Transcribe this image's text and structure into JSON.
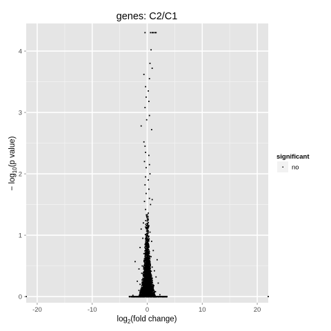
{
  "chart_data": {
    "type": "scatter",
    "title": "genes: C2/C1",
    "xlabel": {
      "prefix": "log",
      "sub": "2",
      "suffix": "(fold change)"
    },
    "ylabel": {
      "prefix": "− log",
      "sub": "10",
      "suffix": "(p value)"
    },
    "xlim": [
      -22,
      22
    ],
    "ylim": [
      -0.1,
      4.45
    ],
    "x_ticks": [
      -20,
      -10,
      0,
      10,
      20
    ],
    "x_tick_labels": [
      "-20",
      "-10",
      "0",
      "10",
      "20"
    ],
    "y_ticks": [
      0,
      1,
      2,
      3,
      4
    ],
    "y_tick_labels": [
      "0",
      "1",
      "2",
      "3",
      "4"
    ],
    "grid": true,
    "legend": {
      "title": "significant",
      "position": "right",
      "entries": [
        "no"
      ]
    },
    "series": [
      {
        "name": "no",
        "color": "#000000",
        "points": [
          [
            -22,
            0
          ],
          [
            -3.2,
            0
          ],
          [
            -2.5,
            0
          ],
          [
            -1.8,
            0
          ],
          [
            -1.2,
            0
          ],
          [
            -0.6,
            0
          ],
          [
            0.6,
            0
          ],
          [
            1.2,
            0
          ],
          [
            1.8,
            0
          ],
          [
            2.5,
            0
          ],
          [
            3.5,
            0
          ],
          [
            22,
            0
          ],
          [
            -0.4,
            4.3
          ],
          [
            0.6,
            4.3
          ],
          [
            0.9,
            4.3
          ],
          [
            1.1,
            4.3
          ],
          [
            1.4,
            4.3
          ],
          [
            1.6,
            4.3
          ],
          [
            0.7,
            4.02
          ],
          [
            0.5,
            3.8
          ],
          [
            0.9,
            3.72
          ],
          [
            -0.6,
            3.62
          ],
          [
            0.4,
            3.55
          ],
          [
            -0.3,
            3.42
          ],
          [
            0.2,
            3.35
          ],
          [
            -0.2,
            3.25
          ],
          [
            0.3,
            3.18
          ],
          [
            -0.4,
            3.08
          ],
          [
            0.4,
            2.95
          ],
          [
            -0.1,
            2.88
          ],
          [
            -1.1,
            2.78
          ],
          [
            0.8,
            2.72
          ],
          [
            -0.6,
            2.52
          ],
          [
            -0.4,
            2.45
          ],
          [
            -0.3,
            2.35
          ],
          [
            0.3,
            2.3
          ],
          [
            -0.5,
            2.2
          ],
          [
            0.4,
            2.15
          ],
          [
            -0.2,
            2.1
          ],
          [
            0.5,
            2.0
          ],
          [
            -0.3,
            1.95
          ],
          [
            0.2,
            1.9
          ],
          [
            -0.4,
            1.82
          ],
          [
            0.3,
            1.75
          ],
          [
            -0.2,
            1.68
          ],
          [
            0.4,
            1.6
          ],
          [
            -0.5,
            1.55
          ],
          [
            0.6,
            1.5
          ],
          [
            -0.3,
            1.42
          ],
          [
            0.2,
            1.36
          ],
          [
            0.9,
            1.58
          ],
          [
            -0.7,
            1.2
          ],
          [
            -1.1,
            1.1
          ],
          [
            0.5,
            1.05
          ],
          [
            -0.8,
            0.95
          ],
          [
            0.8,
            0.9
          ],
          [
            -0.4,
            0.85
          ],
          [
            -1.3,
            0.8
          ],
          [
            1.1,
            0.75
          ],
          [
            -0.6,
            0.7
          ],
          [
            0.7,
            0.65
          ],
          [
            -2.2,
            0.57
          ],
          [
            1.8,
            0.6
          ],
          [
            -0.9,
            0.5
          ],
          [
            0.9,
            0.48
          ],
          [
            -1.5,
            0.45
          ],
          [
            1.3,
            0.42
          ],
          [
            -1.0,
            0.38
          ],
          [
            0.6,
            0.35
          ],
          [
            1.6,
            0.32
          ],
          [
            -1.8,
            0.25
          ],
          [
            2.0,
            0.22
          ],
          [
            -1.3,
            0.2
          ],
          [
            1.2,
            0.18
          ],
          [
            -0.8,
            0.15
          ],
          [
            0.8,
            0.12
          ],
          [
            -1.5,
            0.1
          ],
          [
            1.5,
            0.08
          ],
          [
            -0.5,
            0.05
          ],
          [
            0.5,
            0.04
          ],
          [
            2.3,
            0.03
          ],
          [
            -2.6,
            0.02
          ]
        ]
      }
    ]
  }
}
